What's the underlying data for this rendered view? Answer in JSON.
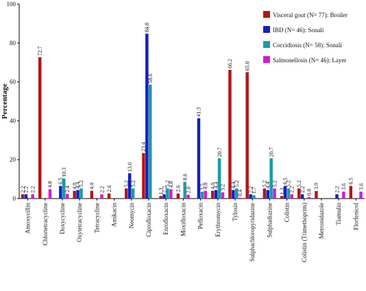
{
  "chart_data": {
    "type": "bar",
    "ylabel": "Percentage",
    "xlabel": "",
    "ylim": [
      0,
      100
    ],
    "yticks": [
      0,
      20,
      40,
      60,
      80,
      100
    ],
    "legend_position": "top-right",
    "categories": [
      "Amoxycillin",
      "Chlortetracycline",
      "Doxycycline",
      "Oxytetracycline",
      "Tetracycline",
      "Amikacin",
      "Neomycin",
      "Ciprofloxacin",
      "Enrofloxacin",
      "Moxifloxacin",
      "Pefloxacin",
      "Erythromycin",
      "Tylosin",
      "Sulphachloropyridazine",
      "Sulphadiazine",
      "Colistin",
      "Colistin (Trimethoprim)",
      "Metronidazole",
      "Tiamulin",
      "Florfenicol"
    ],
    "series": [
      {
        "name": "Visceral gout (N= 77): Broiler",
        "color": "#b01818",
        "values": [
          2.2,
          72.7,
          null,
          4.0,
          4.0,
          2.6,
          5.2,
          23.4,
          1.3,
          2.6,
          null,
          4.0,
          66.2,
          65.0,
          5.2,
          1.3,
          5.2,
          3.9,
          null,
          6.5
        ]
      },
      {
        "name": "IBD (N= 46): Sonali",
        "color": "#1520c0",
        "values": [
          2.2,
          null,
          6.5,
          4.4,
          null,
          null,
          13.0,
          84.8,
          2.2,
          null,
          41.3,
          4.4,
          4.4,
          2.2,
          4.4,
          6.5,
          2.2,
          null,
          2.2,
          null
        ]
      },
      {
        "name": "Coccidiosis (N= 58): Sonali",
        "color": "#1a9aa8",
        "values": [
          null,
          null,
          10.3,
          5.2,
          null,
          null,
          5.2,
          58.6,
          5.2,
          8.6,
          3.5,
          20.7,
          5.2,
          1.7,
          20.7,
          5.2,
          null,
          null,
          null,
          null
        ]
      },
      {
        "name": "Salmonellosis (N= 46): Layer",
        "color": "#d41ad6",
        "values": [
          2.2,
          4.8,
          2.4,
          null,
          2.2,
          null,
          null,
          null,
          4.8,
          2.0,
          4.0,
          3.2,
          0.4,
          null,
          5.2,
          2.2,
          0.8,
          null,
          3.6,
          3.6
        ]
      }
    ]
  }
}
